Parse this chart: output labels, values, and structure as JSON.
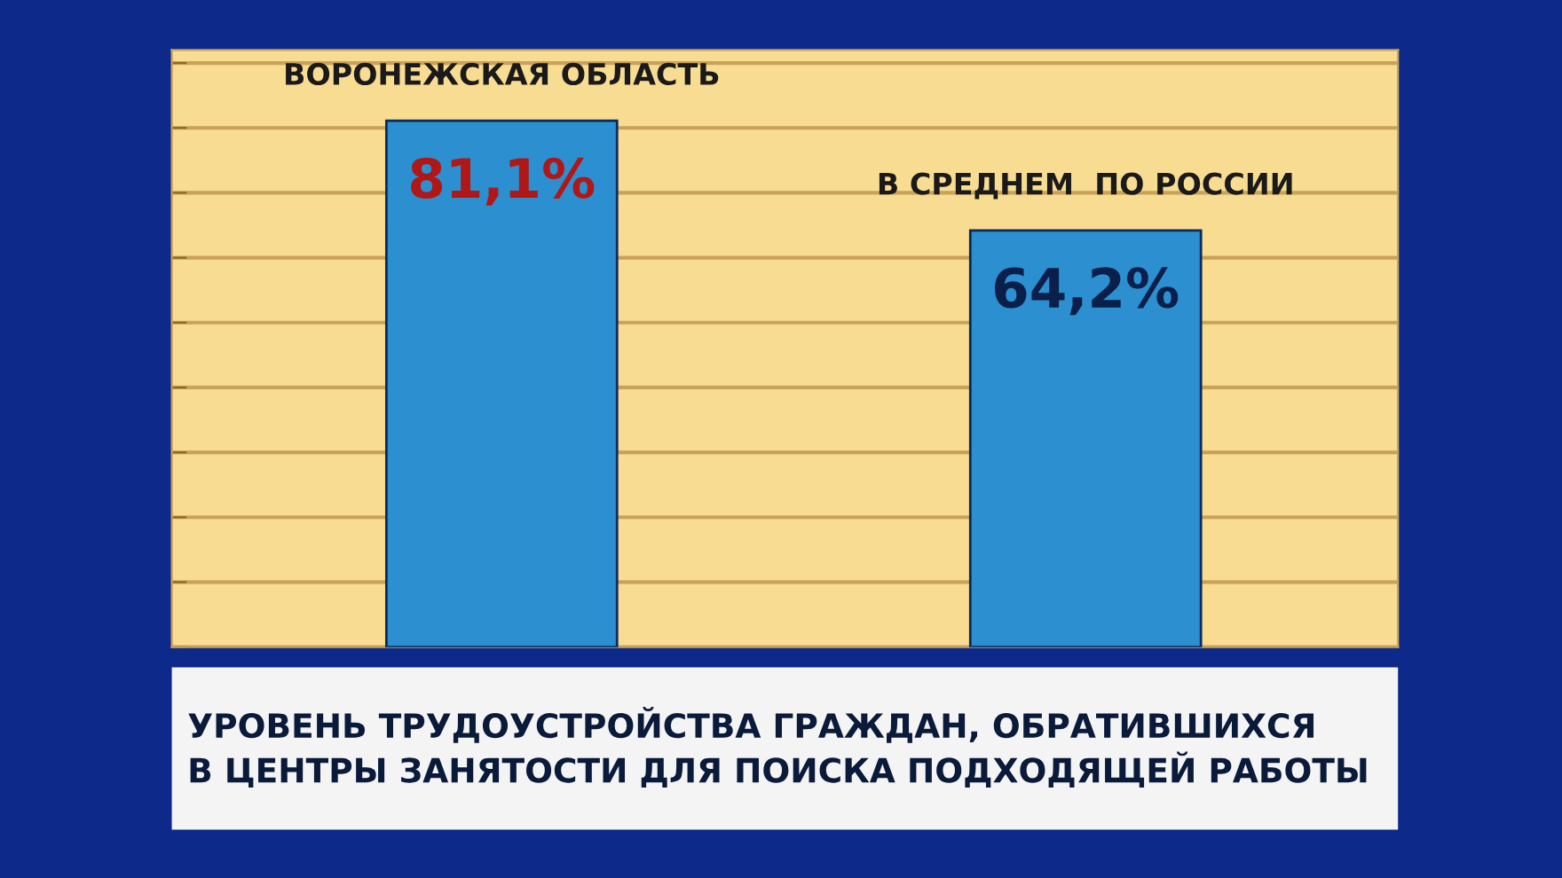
{
  "chart_data": {
    "type": "bar",
    "title": "УРОВЕНЬ ТРУДОУСТРОЙСТВА ГРАЖДАН, ОБРАТИВШИХСЯ\nВ ЦЕНТРЫ ЗАНЯТОСТИ ДЛЯ ПОИСКА ПОДХОДЯЩЕЙ РАБОТЫ",
    "categories": [
      "ВОРОНЕЖСКАЯ ОБЛАСТЬ",
      "В СРЕДНЕМ  ПО РОССИИ"
    ],
    "values": [
      81.1,
      64.2
    ],
    "value_labels": [
      "81,1%",
      "64,2%"
    ],
    "color": "#2b8fd0",
    "ylim": [
      0,
      92
    ],
    "yticks": [
      {
        "value": 0,
        "label": null
      },
      {
        "value": 10,
        "label": null
      },
      {
        "value": 20,
        "label": null
      },
      {
        "value": 30,
        "label": null
      },
      {
        "value": 40,
        "label": null
      },
      {
        "value": 50,
        "label": null
      },
      {
        "value": 60,
        "label": null
      },
      {
        "value": 70,
        "label": null
      },
      {
        "value": 80,
        "label": null
      },
      {
        "value": 90,
        "label": null
      }
    ],
    "grid": "y"
  }
}
